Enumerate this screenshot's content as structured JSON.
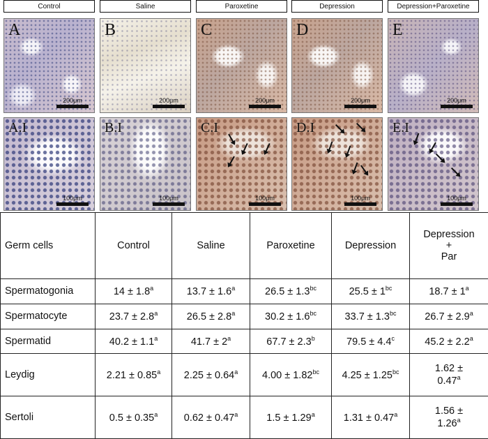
{
  "figure": {
    "columns": [
      {
        "header": "Control",
        "top_label": "A",
        "bottom_label": "A.I",
        "top_scale": "200μm",
        "bottom_scale": "100μm"
      },
      {
        "header": "Saline",
        "top_label": "B",
        "bottom_label": "B.I",
        "top_scale": "200μm",
        "bottom_scale": "100μm"
      },
      {
        "header": "Paroxetine",
        "top_label": "C",
        "bottom_label": "C.I",
        "top_scale": "200μm",
        "bottom_scale": "100μm"
      },
      {
        "header": "Depression",
        "top_label": "D",
        "bottom_label": "D.I",
        "top_scale": "200μm",
        "bottom_scale": "100μm"
      },
      {
        "header": "Depression+Paroxetine",
        "top_label": "E",
        "bottom_label": "E.I",
        "top_scale": "200μm",
        "bottom_scale": "100μm"
      }
    ]
  },
  "table": {
    "headers": [
      "Germ cells",
      "Control",
      "Saline",
      "Paroxetine",
      "Depression",
      "Depression",
      "+",
      "Par"
    ],
    "rows": [
      {
        "name": "Spermatogonia",
        "cells": [
          [
            "14 ± 1.8",
            "a"
          ],
          [
            "13.7 ± 1.6",
            "a"
          ],
          [
            "26.5 ± 1.3",
            "bc"
          ],
          [
            "25.5 ± 1",
            "bc"
          ],
          [
            "18.7 ± 1",
            "a"
          ]
        ]
      },
      {
        "name": "Spermatocyte",
        "cells": [
          [
            "23.7 ± 2.8",
            "a"
          ],
          [
            "26.5 ± 2.8",
            "a"
          ],
          [
            "30.2 ± 1.6",
            "bc"
          ],
          [
            "33.7 ± 1.3",
            "bc"
          ],
          [
            "26.7 ± 2.9",
            "a"
          ]
        ]
      },
      {
        "name": "Spermatid",
        "cells": [
          [
            "40.2 ± 1.1",
            "a"
          ],
          [
            "41.7 ± 2",
            "a"
          ],
          [
            "67.7 ± 2.3",
            "b"
          ],
          [
            "79.5 ± 4.4",
            "c"
          ],
          [
            "45.2 ± 2.2",
            "a"
          ]
        ]
      },
      {
        "name": "Leydig",
        "cells": [
          [
            "2.21 ± 0.85",
            "a"
          ],
          [
            "2.25 ± 0.64",
            "a"
          ],
          [
            "4.00 ± 1.82",
            "bc"
          ],
          [
            "4.25 ± 1.25",
            "bc"
          ],
          [
            "1.62 ±",
            "",
            "0.47",
            "a"
          ]
        ]
      },
      {
        "name": "Sertoli",
        "cells": [
          [
            "0.5 ± 0.35",
            "a"
          ],
          [
            "0.62 ± 0.47",
            "a"
          ],
          [
            "1.5 ± 1.29",
            "a"
          ],
          [
            "1.31 ± 0.47",
            "a"
          ],
          [
            "1.56 ±",
            "",
            "1.26",
            "a"
          ]
        ]
      }
    ]
  }
}
